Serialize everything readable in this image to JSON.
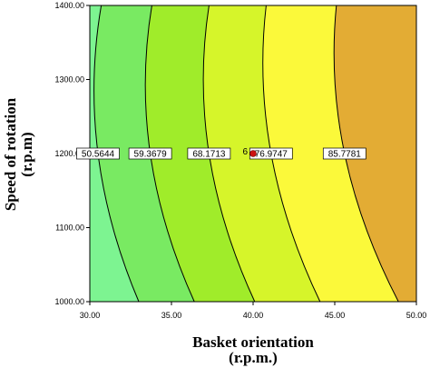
{
  "chart_data": {
    "type": "contour",
    "xlabel_line1": "Basket orientation",
    "xlabel_line2": "(r.p.m.)",
    "ylabel_line1": "Speed of rotation",
    "ylabel_line2": "(r.p.m)",
    "xlim": [
      30,
      50
    ],
    "ylim": [
      1000,
      1400
    ],
    "x_ticks": [
      "30.00",
      "35.00",
      "40.00",
      "45.00",
      "50.00"
    ],
    "y_ticks": [
      "1000.00",
      "1100.00",
      "1200.00",
      "1300.00",
      "1400.00"
    ],
    "contour_levels": [
      {
        "label": "50.5644",
        "x_at_1400": 30.7,
        "x_at_1200": 30.5,
        "x_at_1000": 33.0
      },
      {
        "label": "59.3679",
        "x_at_1400": 33.8,
        "x_at_1200": 33.7,
        "x_at_1000": 36.4
      },
      {
        "label": "68.1713",
        "x_at_1400": 37.3,
        "x_at_1200": 37.3,
        "x_at_1000": 40.1
      },
      {
        "label": "76.9747",
        "x_at_1400": 40.8,
        "x_at_1200": 41.1,
        "x_at_1000": 44.1
      },
      {
        "label": "85.7781",
        "x_at_1400": 45.1,
        "x_at_1200": 45.6,
        "x_at_1000": 48.9
      }
    ],
    "region_colors": [
      "#7df491",
      "#79ea62",
      "#a0ec2a",
      "#d6f52a",
      "#fbf93a",
      "#e3ac34"
    ],
    "design_point": {
      "x": 40.0,
      "y": 1200,
      "label": "6",
      "color": "#cc1111"
    }
  }
}
